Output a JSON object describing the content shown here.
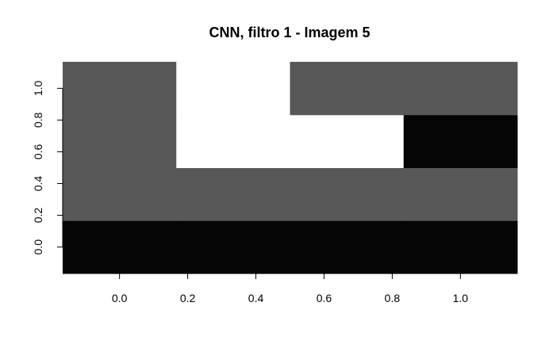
{
  "chart_data": {
    "type": "heatmap",
    "title": "CNN, filtro 1 - Imagem 5",
    "xlabel": "",
    "ylabel": "",
    "x_ticks": [
      "0.0",
      "0.2",
      "0.4",
      "0.6",
      "0.8",
      "1.0"
    ],
    "y_ticks": [
      "0.0",
      "0.2",
      "0.4",
      "0.6",
      "0.8",
      "1.0"
    ],
    "xlim": [
      -0.1667,
      1.1667
    ],
    "ylim": [
      -0.1667,
      1.1667
    ],
    "grid": false,
    "legend": "none",
    "x_centers": [
      0.0,
      0.3333,
      0.6667,
      1.0
    ],
    "y_centers": [
      0.0,
      0.3333,
      0.6667,
      1.0
    ],
    "cell_colors": [
      [
        "#050505",
        "#050505",
        "#050505",
        "#050505"
      ],
      [
        "#585858",
        "#585858",
        "#585858",
        "#585858"
      ],
      [
        "#585858",
        "#ffffff",
        "#ffffff",
        "#050505"
      ],
      [
        "#585858",
        "#ffffff",
        "#585858",
        "#585858"
      ]
    ]
  }
}
